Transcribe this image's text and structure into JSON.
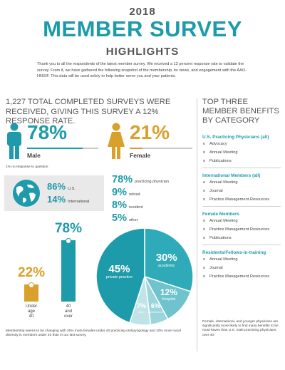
{
  "header": {
    "year": "2018",
    "title": "MEMBER SURVEY",
    "subtitle": "HIGHLIGHTS",
    "intro": "Thank you to all the respondents of the latest member survey. We received a 12 percent response rate to validate the survey. From it, we have gathered the following snapshot of the membership, its views, and engagement with the AAO-HNS/F. This data will be used solely to help better serve you and your patients."
  },
  "headline": "1,227 TOTAL COMPLETED SURVEYS WERE RECEIVED, GIVING THIS SURVEY A 12% RESPONSE RATE.",
  "gender": {
    "male_pct": "78%",
    "male_label": "Male",
    "male_value": 78,
    "female_pct": "21%",
    "female_label": "Female",
    "female_value": 21,
    "note": "1% no response to question"
  },
  "location": {
    "us_pct": "86%",
    "us_label": "U.S.",
    "intl_pct": "14%",
    "intl_label": "International"
  },
  "status_stats": [
    {
      "num": "78%",
      "label": "practicing physician"
    },
    {
      "num": "9%",
      "label": "retired"
    },
    {
      "num": "8%",
      "label": "resident"
    },
    {
      "num": "5%",
      "label": "other"
    }
  ],
  "chart_data": [
    {
      "type": "bar",
      "categories": [
        "Under age 40",
        "40 and over"
      ],
      "values": [
        22,
        78
      ],
      "labels": [
        "22%",
        "78%"
      ],
      "category_lines": [
        [
          "Under",
          "age",
          "40"
        ],
        [
          "40",
          "and",
          "over"
        ]
      ],
      "ylim": [
        0,
        100
      ],
      "colors": [
        "#d9a12b",
        "#1e9bab"
      ]
    },
    {
      "type": "pie",
      "slices": [
        {
          "pct": "45%",
          "label": "private practice",
          "value": 45,
          "color": "#1e9bab"
        },
        {
          "pct": "30%",
          "label": "academic",
          "value": 30,
          "color": "#2faab9"
        },
        {
          "pct": "12%",
          "label": "hospital",
          "value": 12,
          "color": "#6fc3cd"
        },
        {
          "pct": "6%",
          "label": "government",
          "value": 6,
          "color": "#9ad5dc"
        },
        {
          "pct": "7%",
          "label": "other",
          "value": 7,
          "color": "#bfe3e7"
        }
      ]
    }
  ],
  "sidebar": {
    "title": "TOP THREE MEMBER BENEFITS BY CATEGORY",
    "categories": [
      {
        "name": "U.S. Practicing Physicians (all)",
        "items": [
          "Advocacy",
          "Annual Meeting",
          "Publications"
        ]
      },
      {
        "name": "International Members (all)",
        "items": [
          "Annual Meeting",
          "Journal",
          "Practice Management Resources"
        ]
      },
      {
        "name": "Female Members",
        "items": [
          "Annual Meeting",
          "Practice Management Resources",
          "Publications"
        ]
      },
      {
        "name": "Residents/Fellows-in-training",
        "items": [
          "Annual Meeting",
          "Journal",
          "Practice Management Resources"
        ]
      }
    ],
    "note": "Female, international, and younger physicians are significantly more likely to find many benefits to be must-haves than U.S. male practicing physicians over 40."
  },
  "footnote": "Membership seems to be changing with 25% more females under 40 practicing otolaryngology and 10% more racial diversity in members under 40 than in our last survey.",
  "colors": {
    "teal": "#1e9bab",
    "gold": "#d9a12b",
    "gray_bg": "#e9e9e9"
  },
  "icons": {
    "male": "male-person-icon",
    "female": "female-person-icon",
    "globe": "globe-icon"
  }
}
